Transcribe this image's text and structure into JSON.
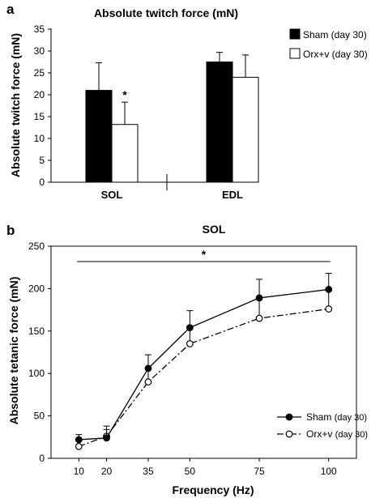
{
  "panels": {
    "a": {
      "letter": "a"
    },
    "b": {
      "letter": "b"
    }
  },
  "chart_data": [
    {
      "type": "bar",
      "title": "Absolute twitch force (mN)",
      "ylabel": "Absolute twitch force (mN)",
      "xlabel": "",
      "ylim": [
        0,
        35
      ],
      "yticks": [
        0,
        5,
        10,
        15,
        20,
        25,
        30,
        35
      ],
      "categories": [
        "SOL",
        "EDL"
      ],
      "series": [
        {
          "name": "Sham (day 30)",
          "color": "#000000",
          "values": [
            21,
            27.5
          ],
          "errors": [
            6.3,
            2.2
          ]
        },
        {
          "name": "Orx+v (day 30)",
          "color": "#ffffff",
          "values": [
            13.2,
            24
          ],
          "errors": [
            5.1,
            5.1
          ]
        }
      ],
      "annotations": [
        {
          "text": "*",
          "category": "SOL",
          "series": "Orx+v (day 30)"
        }
      ],
      "legend": "top-right",
      "grid": false
    },
    {
      "type": "line",
      "title": "SOL",
      "xlabel": "Frequency (Hz)",
      "ylabel": "Absolute tetanic  force (mN)",
      "x": [
        10,
        20,
        35,
        50,
        75,
        100
      ],
      "xticks": [
        10,
        20,
        35,
        50,
        75,
        100
      ],
      "ylim": [
        0,
        250
      ],
      "yticks": [
        0,
        50,
        100,
        150,
        200,
        250
      ],
      "series": [
        {
          "name": "Sham",
          "name_suffix": "(day 30)",
          "marker": "filled-circle",
          "line": "solid",
          "values": [
            22,
            24,
            106,
            154,
            189,
            199
          ],
          "errors": [
            6,
            10,
            16,
            20,
            22,
            19
          ]
        },
        {
          "name": "Orx+v",
          "name_suffix": "(day 30)",
          "marker": "open-circle",
          "line": "dash-dot",
          "values": [
            14,
            26,
            90,
            135,
            165,
            176
          ],
          "errors": [
            6,
            12,
            16,
            19,
            22,
            23
          ]
        }
      ],
      "annotations": [
        {
          "text": "*",
          "x_range": [
            10,
            100
          ]
        }
      ],
      "legend": "bottom-right",
      "grid": false
    }
  ]
}
